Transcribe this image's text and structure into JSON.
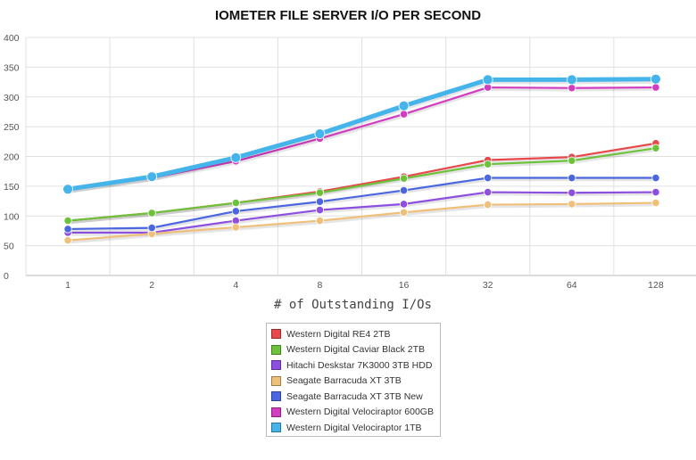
{
  "chart_data": {
    "type": "line",
    "title": "IOMETER FILE SERVER I/O PER SECOND",
    "xlabel": "# of Outstanding I/Os",
    "ylabel": "",
    "categories": [
      "1",
      "2",
      "4",
      "8",
      "16",
      "32",
      "64",
      "128"
    ],
    "ylim": [
      0,
      400
    ],
    "yticks": [
      0,
      50,
      100,
      150,
      200,
      250,
      300,
      350,
      400
    ],
    "grid": true,
    "legend_position": "bottom",
    "series": [
      {
        "name": "Western Digital RE4 2TB",
        "color": "#e8484b",
        "values": [
          92,
          105,
          122,
          141,
          166,
          194,
          199,
          222
        ]
      },
      {
        "name": "Western Digital Caviar Black 2TB",
        "color": "#6cc33a",
        "values": [
          92,
          105,
          122,
          139,
          163,
          187,
          193,
          214
        ]
      },
      {
        "name": "Hitachi Deskstar 7K3000 3TB HDD",
        "color": "#8d4fe0",
        "values": [
          72,
          72,
          92,
          110,
          120,
          140,
          139,
          140
        ]
      },
      {
        "name": "Seagate Barracuda XT 3TB",
        "color": "#f0c07a",
        "values": [
          59,
          70,
          81,
          92,
          106,
          119,
          120,
          122
        ]
      },
      {
        "name": "Seagate Barracuda XT 3TB New",
        "color": "#4a66e0",
        "values": [
          78,
          80,
          108,
          124,
          143,
          164,
          164,
          164
        ]
      },
      {
        "name": "Western Digital Velociraptor 600GB",
        "color": "#d23cc0",
        "values": [
          144,
          164,
          192,
          230,
          271,
          316,
          315,
          316
        ]
      },
      {
        "name": "Western Digital Velociraptor 1TB",
        "color": "#44b4ea",
        "values": [
          145,
          166,
          198,
          238,
          285,
          329,
          329,
          330
        ]
      }
    ]
  }
}
